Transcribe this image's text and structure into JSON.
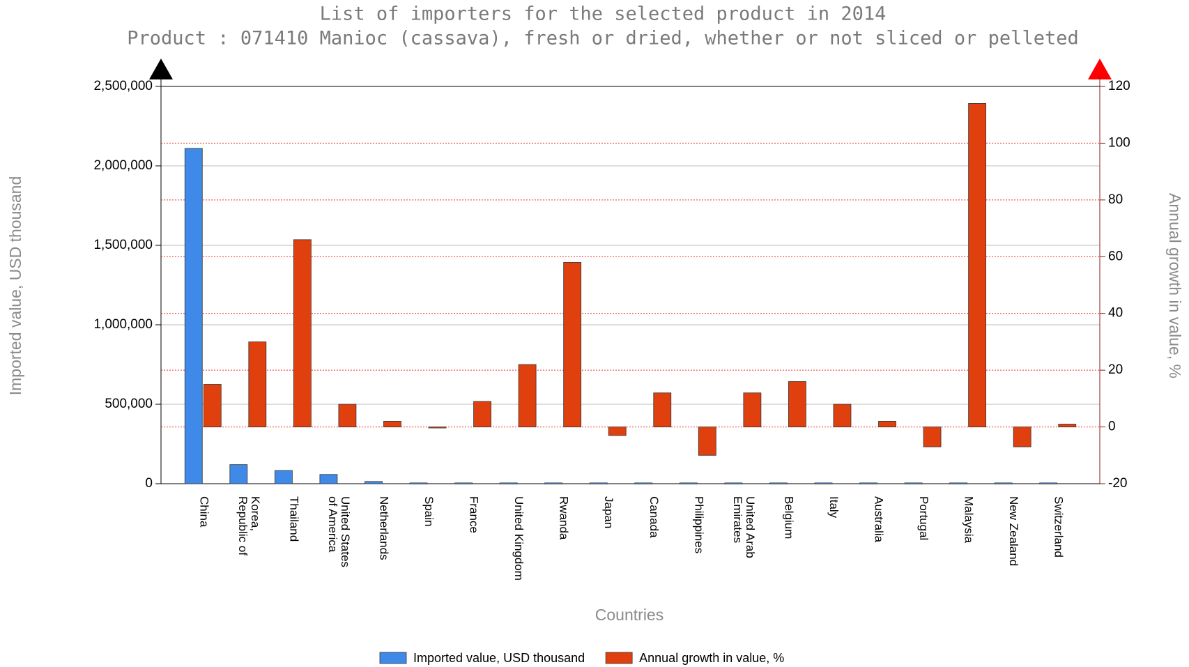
{
  "chart_data": {
    "type": "bar",
    "title": "List of importers for the selected product in 2014",
    "subtitle": "Product : 071410 Manioc (cassava), fresh or dried, whether or not sliced or pelleted",
    "x_label": "Countries",
    "y_label": "Imported value, USD thousand",
    "y2_label": "Annual growth in value, %",
    "categories": [
      "China",
      "Korea,\nRepublic of",
      "Thailand",
      "United States\nof America",
      "Netherlands",
      "Spain",
      "France",
      "United Kingdom",
      "Rwanda",
      "Japan",
      "Canada",
      "Philippines",
      "United Arab\nEmirates",
      "Belgium",
      "Italy",
      "Australia",
      "Portugal",
      "Malaysia",
      "New Zealand",
      "Switzerland"
    ],
    "series": [
      {
        "name": "Imported value, USD thousand",
        "color": "#3f8ae8",
        "axis": "y",
        "values": [
          2110000,
          120000,
          83000,
          58000,
          14000,
          5000,
          5000,
          5000,
          5000,
          5000,
          5000,
          5000,
          5000,
          5000,
          5000,
          5000,
          5000,
          5000,
          5000,
          5000
        ]
      },
      {
        "name": "Annual growth in value, %",
        "color": "#e0400e",
        "axis": "y2",
        "values": [
          15,
          30,
          66,
          8,
          2,
          0,
          9,
          22,
          58,
          -3,
          12,
          -10,
          12,
          16,
          8,
          2,
          -7,
          114,
          -7,
          1
        ]
      }
    ],
    "ylim": [
      0,
      2500000
    ],
    "yticks": [
      0,
      {
        "value": 500000,
        "label": "500,000"
      },
      {
        "value": 1000000,
        "label": "1,000,000"
      },
      {
        "value": 1500000,
        "label": "1,500,000"
      },
      {
        "value": 2000000,
        "label": "2,000,000"
      },
      {
        "value": 2500000,
        "label": "2,500,000"
      }
    ],
    "y2lim": [
      -20,
      120
    ],
    "y2ticks": [
      -20,
      0,
      20,
      40,
      60,
      80,
      100,
      120
    ],
    "grid": true,
    "legend": "bottom"
  }
}
